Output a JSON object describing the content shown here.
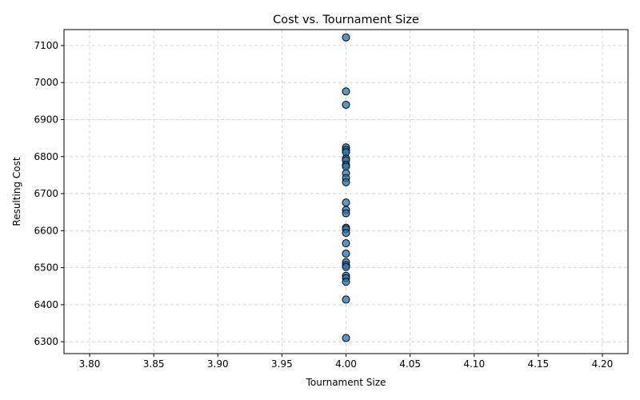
{
  "chart_data": {
    "type": "scatter",
    "title": "Cost vs. Tournament Size",
    "xlabel": "Tournament Size",
    "ylabel": "Resulting Cost",
    "xlim": [
      3.78,
      4.22
    ],
    "ylim": [
      6268,
      7143
    ],
    "xticks": [
      "3.80",
      "3.85",
      "3.90",
      "3.95",
      "4.00",
      "4.05",
      "4.10",
      "4.15",
      "4.20"
    ],
    "xtick_values": [
      3.8,
      3.85,
      3.9,
      3.95,
      4.0,
      4.05,
      4.1,
      4.15,
      4.2
    ],
    "yticks": [
      "6300",
      "6400",
      "6500",
      "6600",
      "6700",
      "6800",
      "6900",
      "7000",
      "7100"
    ],
    "ytick_values": [
      6300,
      6400,
      6500,
      6600,
      6700,
      6800,
      6900,
      7000,
      7100
    ],
    "grid": true,
    "marker_color": "#1f77b4",
    "marker_edge_color": "#000000",
    "points": [
      {
        "x": 4,
        "y": 7122
      },
      {
        "x": 4,
        "y": 6976
      },
      {
        "x": 4,
        "y": 6940
      },
      {
        "x": 4,
        "y": 6825
      },
      {
        "x": 4,
        "y": 6818
      },
      {
        "x": 4,
        "y": 6812
      },
      {
        "x": 4,
        "y": 6795
      },
      {
        "x": 4,
        "y": 6790
      },
      {
        "x": 4,
        "y": 6778
      },
      {
        "x": 4,
        "y": 6773
      },
      {
        "x": 4,
        "y": 6755
      },
      {
        "x": 4,
        "y": 6742
      },
      {
        "x": 4,
        "y": 6731
      },
      {
        "x": 4,
        "y": 6676
      },
      {
        "x": 4,
        "y": 6656
      },
      {
        "x": 4,
        "y": 6647
      },
      {
        "x": 4,
        "y": 6608
      },
      {
        "x": 4,
        "y": 6604
      },
      {
        "x": 4,
        "y": 6594
      },
      {
        "x": 4,
        "y": 6566
      },
      {
        "x": 4,
        "y": 6538
      },
      {
        "x": 4,
        "y": 6515
      },
      {
        "x": 4,
        "y": 6507
      },
      {
        "x": 4,
        "y": 6502
      },
      {
        "x": 4,
        "y": 6478
      },
      {
        "x": 4,
        "y": 6472
      },
      {
        "x": 4,
        "y": 6462
      },
      {
        "x": 4,
        "y": 6414
      },
      {
        "x": 4,
        "y": 6310
      }
    ]
  }
}
